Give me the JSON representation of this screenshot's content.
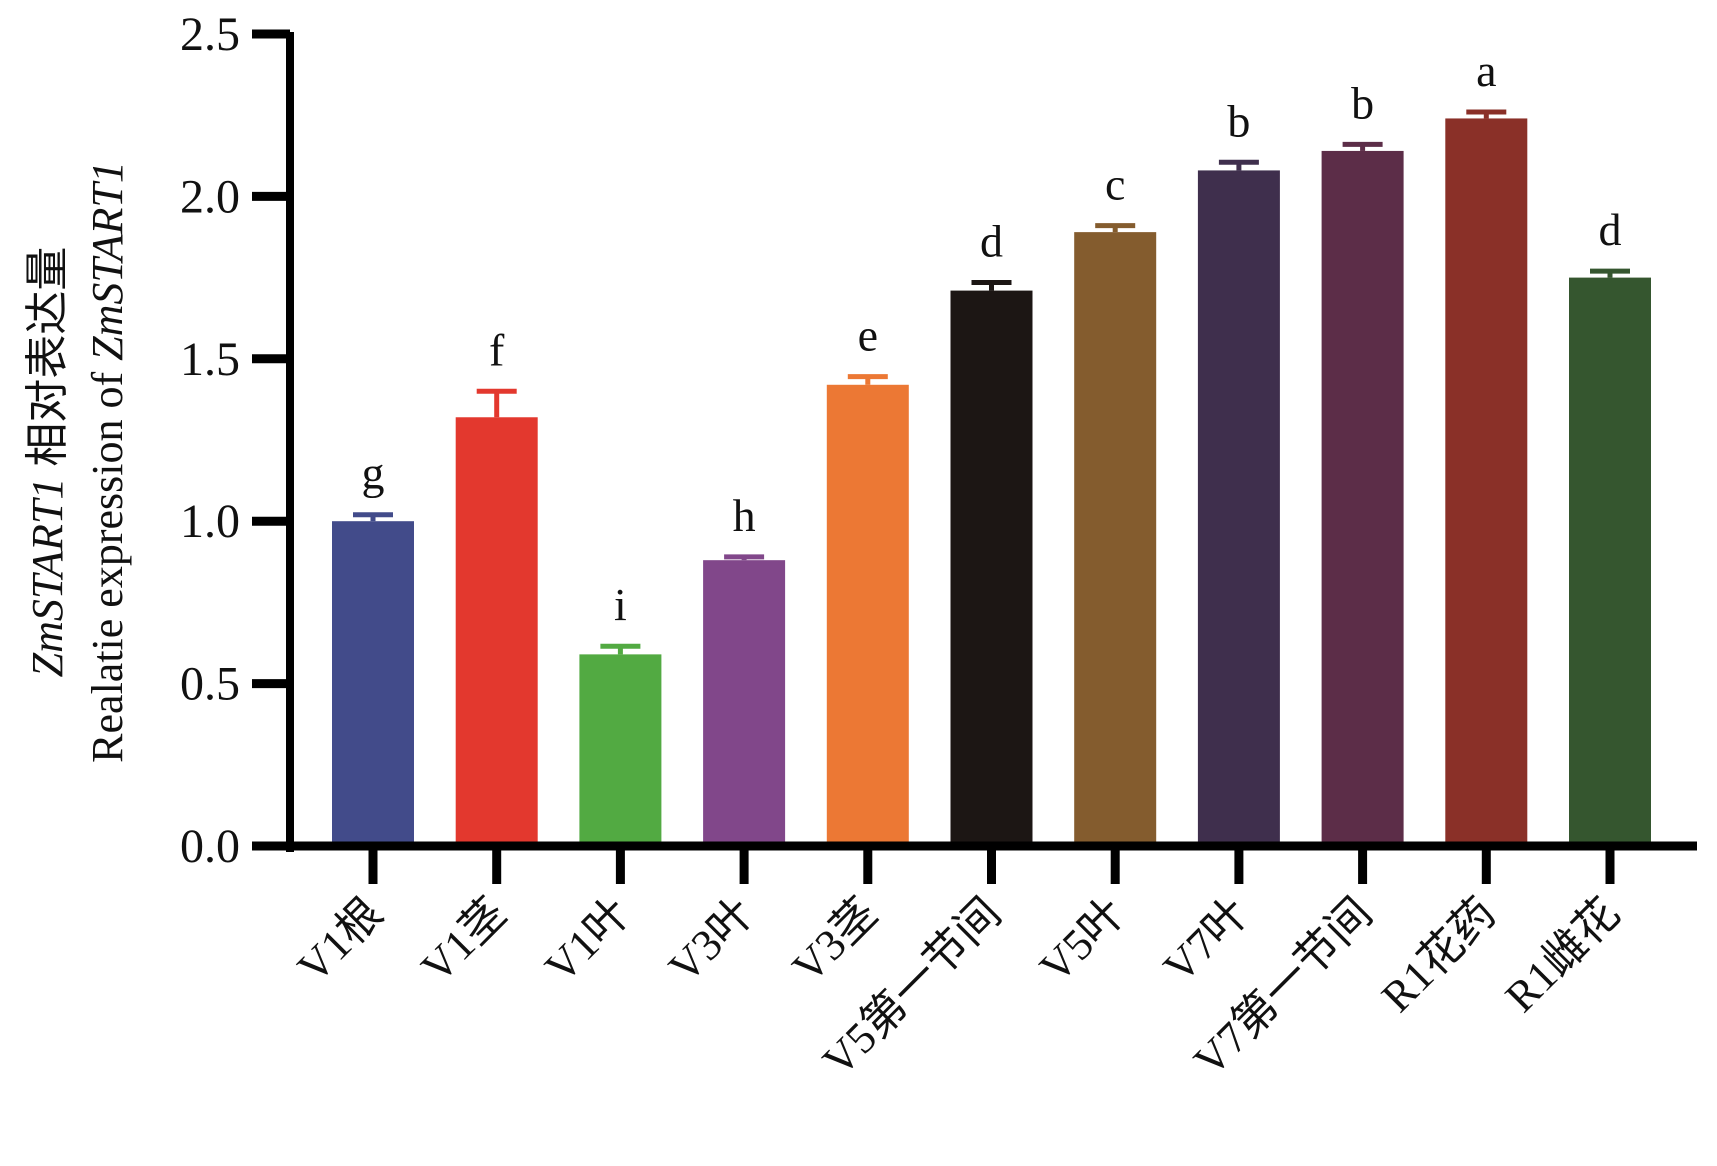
{
  "chart_data": {
    "type": "bar",
    "title": "",
    "ylabel_line1": {
      "gene": "ZmSTART1",
      "text": " 相对表达量"
    },
    "ylabel_line2": {
      "text": "Realatie expression of ",
      "gene": "ZmSTART1"
    },
    "xlabel": "",
    "ylim": [
      0,
      2.5
    ],
    "yticks": [
      0.0,
      0.5,
      1.0,
      1.5,
      2.0,
      2.5
    ],
    "ytick_labels": [
      "0.0",
      "0.5",
      "1.0",
      "1.5",
      "2.0",
      "2.5"
    ],
    "grid": false,
    "legend": null,
    "categories": [
      "V1根",
      "V1茎",
      "V1叶",
      "V3叶",
      "V3茎",
      "V5第一节间",
      "V5叶",
      "V7叶",
      "V7第一节间",
      "R1花药",
      "R1雌花"
    ],
    "values": [
      1.0,
      1.32,
      0.59,
      0.88,
      1.42,
      1.71,
      1.89,
      2.08,
      2.14,
      2.24,
      1.75
    ],
    "errors": [
      0.02,
      0.08,
      0.025,
      0.01,
      0.025,
      0.025,
      0.02,
      0.025,
      0.02,
      0.02,
      0.02
    ],
    "significance": [
      "g",
      "f",
      "i",
      "h",
      "e",
      "d",
      "c",
      "b",
      "b",
      "a",
      "d"
    ],
    "colors": [
      "#424B8A",
      "#E3382E",
      "#52AA42",
      "#81478A",
      "#EC7834",
      "#1C1614",
      "#845C2E",
      "#3F2F4D",
      "#5C2D48",
      "#8A3028",
      "#35562F"
    ],
    "axis_color": "#000000"
  }
}
